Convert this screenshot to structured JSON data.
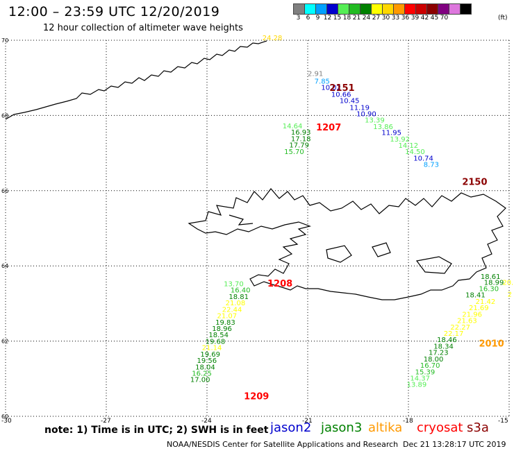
{
  "header": {
    "title": "12:00 – 23:59 UTC 12/20/2019",
    "subtitle": "12 hour collection of altimeter wave heights"
  },
  "color_scale": {
    "unit": "(ft)",
    "steps": [
      {
        "label": "3",
        "color": "#808080"
      },
      {
        "label": "6",
        "color": "#00ffff"
      },
      {
        "label": "9",
        "color": "#00a0ff"
      },
      {
        "label": "12",
        "color": "#0000cd"
      },
      {
        "label": "15",
        "color": "#55ee55"
      },
      {
        "label": "18",
        "color": "#22bb22"
      },
      {
        "label": "21",
        "color": "#008000"
      },
      {
        "label": "24",
        "color": "#ffff00"
      },
      {
        "label": "27",
        "color": "#ffd700"
      },
      {
        "label": "30",
        "color": "#ff9900"
      },
      {
        "label": "33",
        "color": "#ff0000"
      },
      {
        "label": "36",
        "color": "#cc0000"
      },
      {
        "label": "39",
        "color": "#8b0000"
      },
      {
        "label": "42",
        "color": "#800080"
      },
      {
        "label": "45",
        "color": "#dd77dd"
      },
      {
        "label": "70",
        "color": "#000000"
      }
    ]
  },
  "axes": {
    "lat_labels": [
      {
        "label": "70",
        "lat": 70
      },
      {
        "label": "68",
        "lat": 68
      },
      {
        "label": "66",
        "lat": 66
      },
      {
        "label": "64",
        "lat": 64
      },
      {
        "label": "62",
        "lat": 62
      },
      {
        "label": "60",
        "lat": 60
      }
    ],
    "lon_labels": [
      {
        "label": "-30",
        "lon": -30
      },
      {
        "label": "-27",
        "lon": -27
      },
      {
        "label": "-24",
        "lon": -24
      },
      {
        "label": "-21",
        "lon": -21
      },
      {
        "label": "-18",
        "lon": -18
      },
      {
        "label": "-15",
        "lon": -15
      }
    ]
  },
  "times": [
    {
      "text": "2151",
      "color": "#8b0000",
      "lon": -20.35,
      "lat": 68.65
    },
    {
      "text": "1207",
      "color": "#ff0000",
      "lon": -20.75,
      "lat": 67.6
    },
    {
      "text": "2150",
      "color": "#8b0000",
      "lon": -16.4,
      "lat": 66.15
    },
    {
      "text": "1208",
      "color": "#ff0000",
      "lon": -22.2,
      "lat": 63.45
    },
    {
      "text": "2010",
      "color": "#ff9900",
      "lon": -15.9,
      "lat": 61.85
    },
    {
      "text": "1209",
      "color": "#ff0000",
      "lon": -22.9,
      "lat": 60.45
    }
  ],
  "observations": [
    {
      "value": "24.28",
      "color": "#ffd700",
      "lon": -22.35,
      "lat": 70.0
    },
    {
      "value": "2.91",
      "color": "#808080",
      "lon": -21.0,
      "lat": 69.05
    },
    {
      "value": "7.85",
      "color": "#00a0ff",
      "lon": -20.8,
      "lat": 68.85
    },
    {
      "value": "10.02",
      "color": "#0000cd",
      "lon": -20.6,
      "lat": 68.68
    },
    {
      "value": "10.66",
      "color": "#0000cd",
      "lon": -20.3,
      "lat": 68.5
    },
    {
      "value": "10.45",
      "color": "#0000cd",
      "lon": -20.05,
      "lat": 68.33
    },
    {
      "value": "11.19",
      "color": "#0000cd",
      "lon": -19.75,
      "lat": 68.15
    },
    {
      "value": "10.90",
      "color": "#0000cd",
      "lon": -19.55,
      "lat": 67.98
    },
    {
      "value": "13.39",
      "color": "#55ee55",
      "lon": -19.3,
      "lat": 67.81
    },
    {
      "value": "13.86",
      "color": "#55ee55",
      "lon": -19.05,
      "lat": 67.64
    },
    {
      "value": "11.95",
      "color": "#0000cd",
      "lon": -18.8,
      "lat": 67.48
    },
    {
      "value": "13.92",
      "color": "#55ee55",
      "lon": -18.55,
      "lat": 67.31
    },
    {
      "value": "14.12",
      "color": "#55ee55",
      "lon": -18.3,
      "lat": 67.14
    },
    {
      "value": "14.50",
      "color": "#55ee55",
      "lon": -18.1,
      "lat": 66.97
    },
    {
      "value": "10.74",
      "color": "#0000cd",
      "lon": -17.85,
      "lat": 66.8
    },
    {
      "value": "8.73",
      "color": "#00a0ff",
      "lon": -17.55,
      "lat": 66.63
    },
    {
      "value": "14.64",
      "color": "#55ee55",
      "lon": -21.75,
      "lat": 67.66
    },
    {
      "value": "16.93",
      "color": "#008000",
      "lon": -21.5,
      "lat": 67.49
    },
    {
      "value": "17.18",
      "color": "#008000",
      "lon": -21.5,
      "lat": 67.32
    },
    {
      "value": "17.79",
      "color": "#008000",
      "lon": -21.55,
      "lat": 67.15
    },
    {
      "value": "15.70",
      "color": "#22bb22",
      "lon": -21.7,
      "lat": 66.97
    },
    {
      "value": "13.70",
      "color": "#55ee55",
      "lon": -23.5,
      "lat": 63.46
    },
    {
      "value": "16.40",
      "color": "#22bb22",
      "lon": -23.3,
      "lat": 63.29
    },
    {
      "value": "18.81",
      "color": "#008000",
      "lon": -23.35,
      "lat": 63.12
    },
    {
      "value": "21.08",
      "color": "#ffff00",
      "lon": -23.45,
      "lat": 62.95
    },
    {
      "value": "22.44",
      "color": "#ffff00",
      "lon": -23.55,
      "lat": 62.78
    },
    {
      "value": "21.07",
      "color": "#ffff00",
      "lon": -23.7,
      "lat": 62.61
    },
    {
      "value": "19.83",
      "color": "#008000",
      "lon": -23.75,
      "lat": 62.44
    },
    {
      "value": "18.96",
      "color": "#008000",
      "lon": -23.85,
      "lat": 62.27
    },
    {
      "value": "18.54",
      "color": "#008000",
      "lon": -23.95,
      "lat": 62.1
    },
    {
      "value": "19.68",
      "color": "#008000",
      "lon": -24.05,
      "lat": 61.93
    },
    {
      "value": "21.14",
      "color": "#ffff00",
      "lon": -24.15,
      "lat": 61.76
    },
    {
      "value": "19.69",
      "color": "#008000",
      "lon": -24.2,
      "lat": 61.59
    },
    {
      "value": "19.56",
      "color": "#008000",
      "lon": -24.3,
      "lat": 61.42
    },
    {
      "value": "18.04",
      "color": "#008000",
      "lon": -24.35,
      "lat": 61.25
    },
    {
      "value": "16.25",
      "color": "#22bb22",
      "lon": -24.45,
      "lat": 61.08
    },
    {
      "value": "17.00",
      "color": "#008000",
      "lon": -24.5,
      "lat": 60.91
    },
    {
      "value": "18.61",
      "color": "#008000",
      "lon": -15.85,
      "lat": 63.65
    },
    {
      "value": "18.99",
      "color": "#008000",
      "lon": -15.75,
      "lat": 63.5
    },
    {
      "value": "20.",
      "color": "#ffff00",
      "lon": -15.2,
      "lat": 63.5
    },
    {
      "value": "16.30",
      "color": "#22bb22",
      "lon": -15.9,
      "lat": 63.33
    },
    {
      "value": "2",
      "color": "#ffff00",
      "lon": -15.05,
      "lat": 63.18
    },
    {
      "value": "18.41",
      "color": "#008000",
      "lon": -16.3,
      "lat": 63.16
    },
    {
      "value": "21.42",
      "color": "#ffff00",
      "lon": -16.0,
      "lat": 62.99
    },
    {
      "value": "21.69",
      "color": "#ffff00",
      "lon": -16.2,
      "lat": 62.82
    },
    {
      "value": "21.96",
      "color": "#ffff00",
      "lon": -16.4,
      "lat": 62.65
    },
    {
      "value": "21.63",
      "color": "#ffff00",
      "lon": -16.55,
      "lat": 62.48
    },
    {
      "value": "22.27",
      "color": "#ffff00",
      "lon": -16.75,
      "lat": 62.31
    },
    {
      "value": "22.17",
      "color": "#ffff00",
      "lon": -16.95,
      "lat": 62.14
    },
    {
      "value": "18.46",
      "color": "#008000",
      "lon": -17.15,
      "lat": 61.97
    },
    {
      "value": "18.34",
      "color": "#008000",
      "lon": -17.25,
      "lat": 61.8
    },
    {
      "value": "17.23",
      "color": "#008000",
      "lon": -17.4,
      "lat": 61.63
    },
    {
      "value": "18.00",
      "color": "#008000",
      "lon": -17.55,
      "lat": 61.46
    },
    {
      "value": "16.70",
      "color": "#22bb22",
      "lon": -17.65,
      "lat": 61.29
    },
    {
      "value": "15.39",
      "color": "#22bb22",
      "lon": -17.8,
      "lat": 61.12
    },
    {
      "value": "14.37",
      "color": "#55ee55",
      "lon": -17.95,
      "lat": 60.95
    },
    {
      "value": "13.89",
      "color": "#55ee55",
      "lon": -18.05,
      "lat": 60.78
    }
  ],
  "footer": {
    "note": "note: 1) Time is in UTC; 2) SWH is in feet",
    "satellites": [
      {
        "name": "jason2",
        "color": "#0000cd"
      },
      {
        "name": "jason3",
        "color": "#008000"
      },
      {
        "name": "altika",
        "color": "#ff9900"
      },
      {
        "name": "cryosat",
        "color": "#ff0000"
      },
      {
        "name": "s3a",
        "color": "#8b0000"
      }
    ],
    "credit": "NOAA/NESDIS Center for Satellite Applications and Research",
    "generated": "Dec 21 13:28:17 UTC 2019"
  }
}
